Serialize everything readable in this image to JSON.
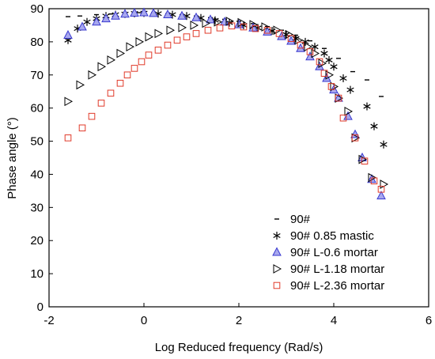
{
  "chart_data": {
    "type": "scatter",
    "xlabel": "Log Reduced frequency (Rad/s)",
    "ylabel": "Phase angle (°)",
    "xlim": [
      -2,
      6
    ],
    "ylim": [
      0,
      90
    ],
    "xticks": [
      -2,
      0,
      2,
      4,
      6
    ],
    "yticks": [
      0,
      10,
      20,
      30,
      40,
      50,
      60,
      70,
      80,
      90
    ],
    "legend_position": "bottom-right",
    "grid": false,
    "series": [
      {
        "name": "90#",
        "marker": "dash",
        "color": "#000000",
        "points": [
          [
            -1.6,
            87.6
          ],
          [
            -1.35,
            87.8
          ],
          [
            -1.0,
            88.2
          ],
          [
            -0.7,
            88.4
          ],
          [
            -0.4,
            88.6
          ],
          [
            -0.1,
            88.8
          ],
          [
            0.2,
            88.8
          ],
          [
            0.5,
            88.5
          ],
          [
            0.8,
            88.2
          ],
          [
            1.1,
            87.8
          ],
          [
            1.4,
            87.3
          ],
          [
            1.7,
            86.8
          ],
          [
            2.0,
            86.2
          ],
          [
            2.3,
            85.5
          ],
          [
            2.6,
            84.6
          ],
          [
            2.9,
            83.5
          ],
          [
            3.2,
            82.0
          ],
          [
            3.5,
            80.3
          ],
          [
            3.8,
            78.0
          ],
          [
            4.1,
            75.0
          ],
          [
            4.4,
            71.0
          ],
          [
            4.7,
            68.5
          ],
          [
            5.0,
            63.5
          ]
        ]
      },
      {
        "name": "90# 0.85 mastic",
        "marker": "asterisk",
        "color": "#000000",
        "points": [
          [
            -1.6,
            80.5
          ],
          [
            -1.4,
            84.0
          ],
          [
            -1.2,
            86.0
          ],
          [
            -1.0,
            87.0
          ],
          [
            -0.8,
            87.8
          ],
          [
            -0.6,
            88.2
          ],
          [
            -0.4,
            88.4
          ],
          [
            -0.2,
            88.6
          ],
          [
            0.0,
            88.7
          ],
          [
            0.3,
            88.5
          ],
          [
            0.6,
            88.2
          ],
          [
            0.9,
            87.8
          ],
          [
            1.2,
            87.2
          ],
          [
            1.5,
            86.5
          ],
          [
            1.8,
            85.8
          ],
          [
            2.1,
            85.0
          ],
          [
            2.4,
            84.2
          ],
          [
            2.7,
            83.3
          ],
          [
            3.0,
            82.2
          ],
          [
            3.2,
            81.0
          ],
          [
            3.4,
            80.0
          ],
          [
            3.6,
            78.5
          ],
          [
            3.8,
            76.5
          ],
          [
            3.9,
            74.5
          ],
          [
            4.0,
            72.5
          ],
          [
            4.2,
            69.0
          ],
          [
            4.35,
            65.5
          ],
          [
            4.7,
            60.5
          ],
          [
            4.85,
            54.5
          ],
          [
            5.05,
            49.0
          ]
        ]
      },
      {
        "name": "90# L-0.6 mortar",
        "marker": "triangle-up",
        "color": "#3a3ad0",
        "fill": "#a8a8ee",
        "points": [
          [
            -1.6,
            82.0
          ],
          [
            -1.3,
            84.5
          ],
          [
            -1.0,
            86.0
          ],
          [
            -0.8,
            87.0
          ],
          [
            -0.6,
            87.8
          ],
          [
            -0.4,
            88.4
          ],
          [
            -0.2,
            88.7
          ],
          [
            0.0,
            88.8
          ],
          [
            0.2,
            88.6
          ],
          [
            0.5,
            88.2
          ],
          [
            0.8,
            87.8
          ],
          [
            1.1,
            87.3
          ],
          [
            1.4,
            86.7
          ],
          [
            1.7,
            86.0
          ],
          [
            2.0,
            85.2
          ],
          [
            2.3,
            84.2
          ],
          [
            2.6,
            83.0
          ],
          [
            2.9,
            81.6
          ],
          [
            3.1,
            80.2
          ],
          [
            3.3,
            78.0
          ],
          [
            3.5,
            75.5
          ],
          [
            3.7,
            72.5
          ],
          [
            3.85,
            69.0
          ],
          [
            4.0,
            65.5
          ],
          [
            4.1,
            63.0
          ],
          [
            4.3,
            57.5
          ],
          [
            4.45,
            52.0
          ],
          [
            4.6,
            45.0
          ],
          [
            4.8,
            38.5
          ],
          [
            5.0,
            33.5
          ]
        ]
      },
      {
        "name": "90# L-1.18 mortar",
        "marker": "triangle-right",
        "color": "#000000",
        "points": [
          [
            -1.6,
            62.0
          ],
          [
            -1.35,
            67.0
          ],
          [
            -1.1,
            70.0
          ],
          [
            -0.9,
            72.5
          ],
          [
            -0.7,
            74.5
          ],
          [
            -0.5,
            76.5
          ],
          [
            -0.3,
            78.5
          ],
          [
            -0.1,
            80.0
          ],
          [
            0.1,
            81.5
          ],
          [
            0.3,
            82.5
          ],
          [
            0.55,
            83.5
          ],
          [
            0.8,
            84.3
          ],
          [
            1.05,
            85.0
          ],
          [
            1.3,
            85.6
          ],
          [
            1.55,
            86.0
          ],
          [
            1.8,
            86.2
          ],
          [
            2.05,
            85.8
          ],
          [
            2.3,
            85.2
          ],
          [
            2.55,
            84.5
          ],
          [
            2.8,
            83.5
          ],
          [
            3.05,
            82.2
          ],
          [
            3.25,
            80.5
          ],
          [
            3.45,
            78.5
          ],
          [
            3.6,
            76.5
          ],
          [
            3.75,
            73.5
          ],
          [
            3.9,
            70.0
          ],
          [
            4.0,
            66.5
          ],
          [
            4.1,
            63.0
          ],
          [
            4.3,
            59.0
          ],
          [
            4.45,
            51.0
          ],
          [
            4.6,
            44.5
          ],
          [
            4.8,
            39.0
          ],
          [
            5.05,
            37.0
          ]
        ]
      },
      {
        "name": "90# L-2.36 mortar",
        "marker": "square",
        "color": "#e03a2a",
        "points": [
          [
            -1.6,
            51.0
          ],
          [
            -1.3,
            54.0
          ],
          [
            -1.1,
            57.5
          ],
          [
            -0.9,
            61.5
          ],
          [
            -0.7,
            64.5
          ],
          [
            -0.5,
            67.5
          ],
          [
            -0.35,
            70.0
          ],
          [
            -0.2,
            72.0
          ],
          [
            -0.05,
            74.0
          ],
          [
            0.1,
            76.0
          ],
          [
            0.3,
            77.5
          ],
          [
            0.5,
            79.0
          ],
          [
            0.7,
            80.5
          ],
          [
            0.9,
            81.5
          ],
          [
            1.1,
            82.5
          ],
          [
            1.35,
            83.5
          ],
          [
            1.6,
            84.2
          ],
          [
            1.85,
            84.8
          ],
          [
            2.1,
            84.5
          ],
          [
            2.35,
            84.0
          ],
          [
            2.6,
            83.5
          ],
          [
            2.85,
            82.5
          ],
          [
            3.1,
            81.0
          ],
          [
            3.3,
            79.0
          ],
          [
            3.5,
            77.0
          ],
          [
            3.7,
            74.0
          ],
          [
            3.8,
            70.5
          ],
          [
            3.95,
            66.5
          ],
          [
            4.1,
            63.0
          ],
          [
            4.2,
            57.0
          ],
          [
            4.45,
            51.0
          ],
          [
            4.65,
            44.0
          ],
          [
            4.85,
            38.0
          ],
          [
            5.0,
            35.5
          ]
        ]
      }
    ]
  }
}
